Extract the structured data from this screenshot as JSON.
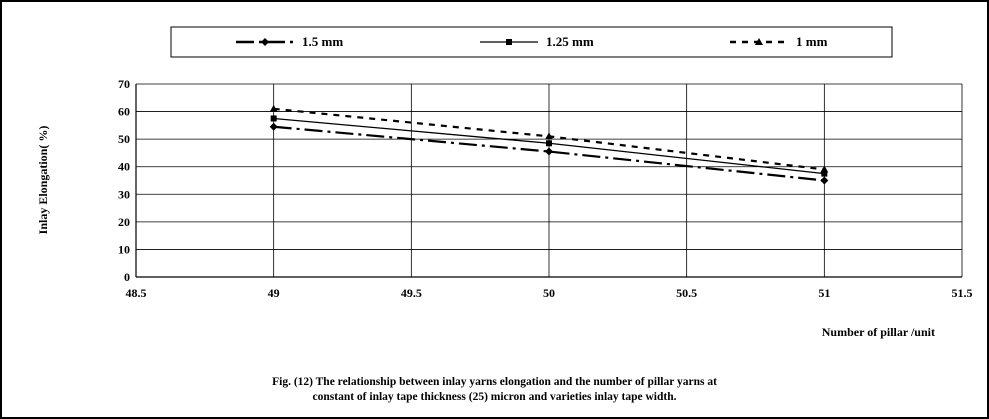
{
  "chart_data": {
    "type": "line",
    "title": "",
    "xlabel": "Number of pillar /unit",
    "ylabel": "Inlay Elongation( %)",
    "xlim": [
      48.5,
      51.5
    ],
    "ylim": [
      0,
      70
    ],
    "xticks": [
      "48.5",
      "49",
      "49.5",
      "50",
      "50.5",
      "51",
      "51.5"
    ],
    "yticks": [
      "0",
      "10",
      "20",
      "30",
      "40",
      "50",
      "60",
      "70"
    ],
    "grid": true,
    "legend_position": "top",
    "series": [
      {
        "name": "1.5 mm",
        "marker": "diamond",
        "dash": "long-dash-dot",
        "x": [
          49,
          50,
          51
        ],
        "y": [
          54.5,
          45.5,
          35
        ]
      },
      {
        "name": "1.25 mm",
        "marker": "square",
        "dash": "solid",
        "x": [
          49,
          50,
          51
        ],
        "y": [
          57.5,
          48.5,
          37.5
        ]
      },
      {
        "name": "1 mm",
        "marker": "triangle",
        "dash": "short-dash",
        "x": [
          49,
          50,
          51
        ],
        "y": [
          61,
          51,
          39
        ]
      }
    ],
    "caption": [
      "Fig. (12) The relationship between inlay yarns elongation and the number of pillar yarns at",
      "constant of inlay tape thickness (25) micron and varieties inlay tape width."
    ]
  }
}
